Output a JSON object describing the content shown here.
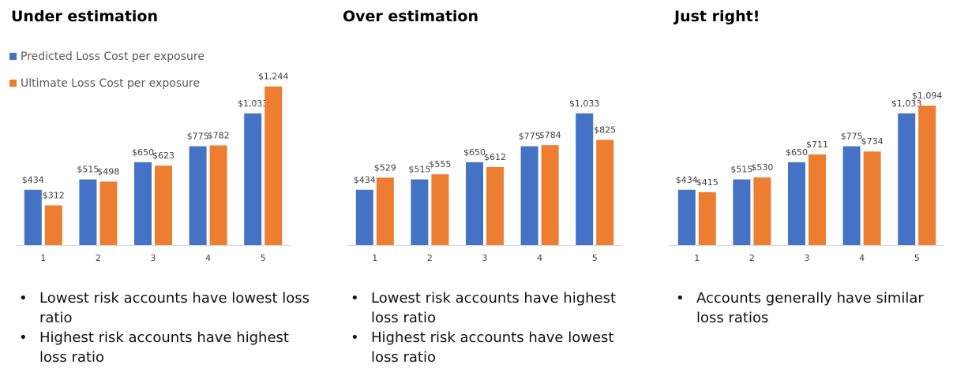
{
  "colors": {
    "predicted": "#4472C4",
    "ultimate": "#ED7D31",
    "axis": "#D9D9D9",
    "tick": "#404040"
  },
  "legend": {
    "predicted": "Predicted Loss Cost per exposure",
    "ultimate": "Ultimate Loss Cost per exposure"
  },
  "chart_data": [
    {
      "type": "bar",
      "title": "Under estimation",
      "categories": [
        "1",
        "2",
        "3",
        "4",
        "5"
      ],
      "series": [
        {
          "name": "Predicted Loss Cost per exposure",
          "values": [
            434,
            515,
            650,
            775,
            1033
          ],
          "labels": [
            "$434",
            "$515",
            "$650",
            "$775",
            "$1,033"
          ]
        },
        {
          "name": "Ultimate Loss Cost per exposure",
          "values": [
            312,
            498,
            623,
            782,
            1244
          ],
          "labels": [
            "$312",
            "$498",
            "$623",
            "$782",
            "$1,244"
          ]
        }
      ],
      "ylim": [
        0,
        1300
      ],
      "grid": false,
      "legend_position": "top-left",
      "bullets": [
        "Lowest risk accounts have lowest loss ratio",
        "Highest risk accounts have highest loss ratio"
      ]
    },
    {
      "type": "bar",
      "title": "Over estimation",
      "categories": [
        "1",
        "2",
        "3",
        "4",
        "5"
      ],
      "series": [
        {
          "name": "Predicted Loss Cost per exposure",
          "values": [
            434,
            515,
            650,
            775,
            1033
          ],
          "labels": [
            "$434",
            "$515",
            "$650",
            "$775",
            "$1,033"
          ]
        },
        {
          "name": "Ultimate Loss Cost per exposure",
          "values": [
            529,
            555,
            612,
            784,
            825
          ],
          "labels": [
            "$529",
            "$555",
            "$612",
            "$784",
            "$825"
          ]
        }
      ],
      "ylim": [
        0,
        1300
      ],
      "grid": false,
      "bullets": [
        "Lowest risk accounts have highest loss ratio",
        "Highest risk accounts have lowest loss ratio"
      ]
    },
    {
      "type": "bar",
      "title": "Just right!",
      "categories": [
        "1",
        "2",
        "3",
        "4",
        "5"
      ],
      "series": [
        {
          "name": "Predicted Loss Cost per exposure",
          "values": [
            434,
            515,
            650,
            775,
            1033
          ],
          "labels": [
            "$434",
            "$515",
            "$650",
            "$775",
            "$1,033"
          ]
        },
        {
          "name": "Ultimate Loss Cost per exposure",
          "values": [
            415,
            530,
            711,
            734,
            1094
          ],
          "labels": [
            "$415",
            "$530",
            "$711",
            "$734",
            "$1,094"
          ]
        }
      ],
      "ylim": [
        0,
        1300
      ],
      "grid": false,
      "bullets": [
        "Accounts generally have similar loss ratios"
      ]
    }
  ]
}
